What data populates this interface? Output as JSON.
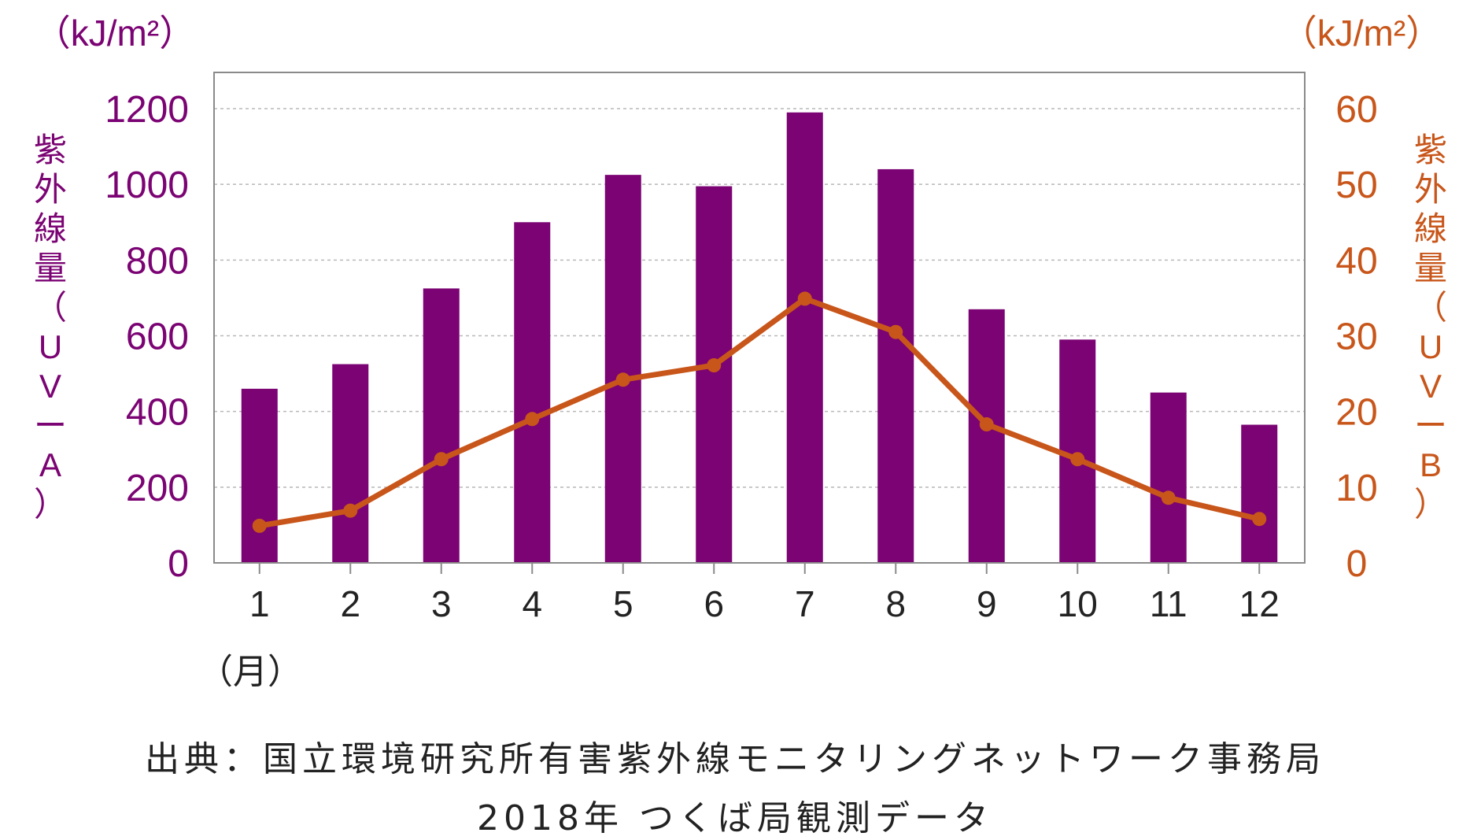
{
  "colors": {
    "uva": "#7b0373",
    "uvb": "#c8561a",
    "grid": "#b8b8b8",
    "frame": "#8a8a8a",
    "text": "#222222"
  },
  "units": {
    "left": "（kJ/m²）",
    "right": "（kJ/m²）"
  },
  "source": {
    "line1": "出典：国立環境研究所有害紫外線モニタリングネットワーク事務局",
    "line2": "2018年 つくば局観測データ"
  },
  "chart_data": {
    "type": "bar",
    "xlabel": "（月）",
    "categories": [
      "1",
      "2",
      "3",
      "4",
      "5",
      "6",
      "7",
      "8",
      "9",
      "10",
      "11",
      "12"
    ],
    "y_left": {
      "label_chars": [
        "紫",
        "外",
        "線",
        "量",
        "（",
        "U",
        "V",
        "ー",
        "A",
        "）"
      ],
      "ylim": [
        0,
        1200
      ],
      "ticks": [
        "0",
        "200",
        "400",
        "600",
        "800",
        "1000",
        "1200"
      ],
      "tick_values": [
        0,
        200,
        400,
        600,
        800,
        1000,
        1200
      ]
    },
    "y_right": {
      "label_chars": [
        "紫",
        "外",
        "線",
        "量",
        "（",
        "U",
        "V",
        "ー",
        "B",
        "）"
      ],
      "ylim": [
        0,
        60
      ],
      "ticks": [
        "0",
        "10",
        "20",
        "30",
        "40",
        "50",
        "60"
      ],
      "tick_values": [
        0,
        10,
        20,
        30,
        40,
        50,
        60
      ]
    },
    "grid": true,
    "series": [
      {
        "type": "bar",
        "axis": "left",
        "color": "#7b0373",
        "values": [
          460,
          525,
          725,
          900,
          1025,
          995,
          1190,
          1040,
          670,
          590,
          450,
          365
        ]
      },
      {
        "type": "line",
        "axis": "right",
        "color": "#c8561a",
        "values": [
          4.9,
          6.9,
          13.7,
          19.0,
          24.2,
          26.1,
          34.9,
          30.5,
          18.3,
          13.7,
          8.6,
          5.8
        ]
      }
    ]
  }
}
